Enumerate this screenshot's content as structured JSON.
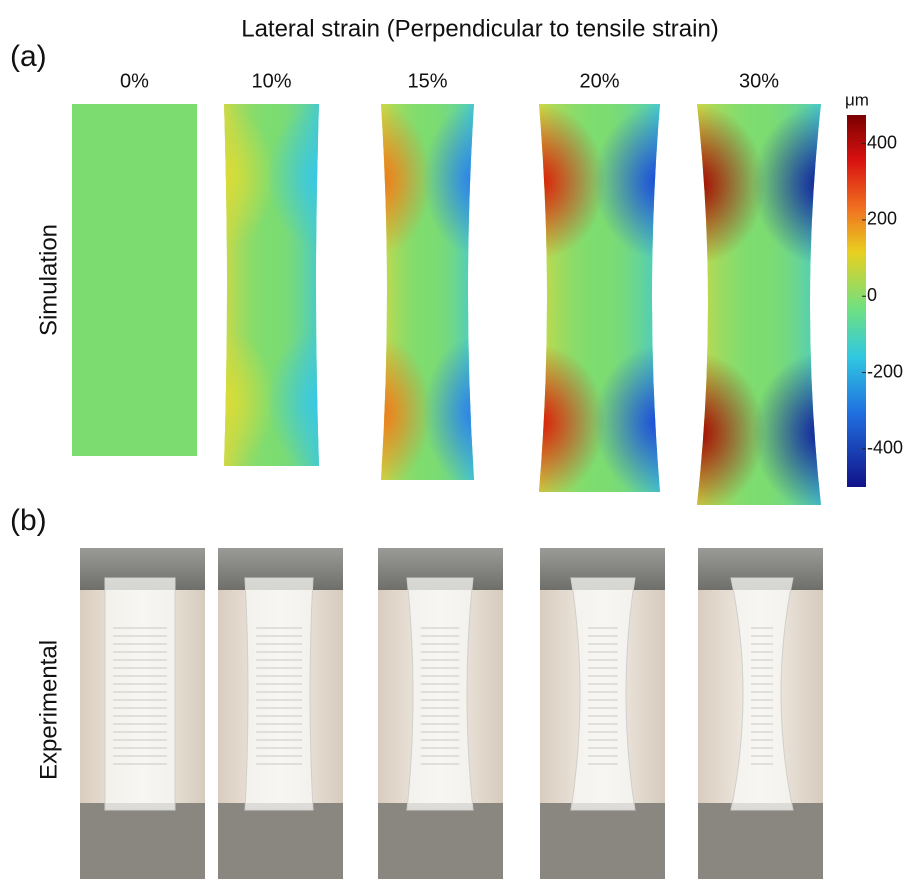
{
  "title": "Lateral strain (Perpendicular to tensile strain)",
  "panel_a": {
    "label": "(a)",
    "row_label": "Simulation",
    "columns": [
      "0%",
      "10%",
      "15%",
      "20%",
      "30%"
    ]
  },
  "colorbar": {
    "unit": "μm",
    "range": [
      -500,
      475
    ],
    "ticks": [
      400,
      200,
      0,
      -200,
      -400
    ]
  },
  "panel_b": {
    "label": "(b)",
    "row_label": "Experimental"
  }
}
